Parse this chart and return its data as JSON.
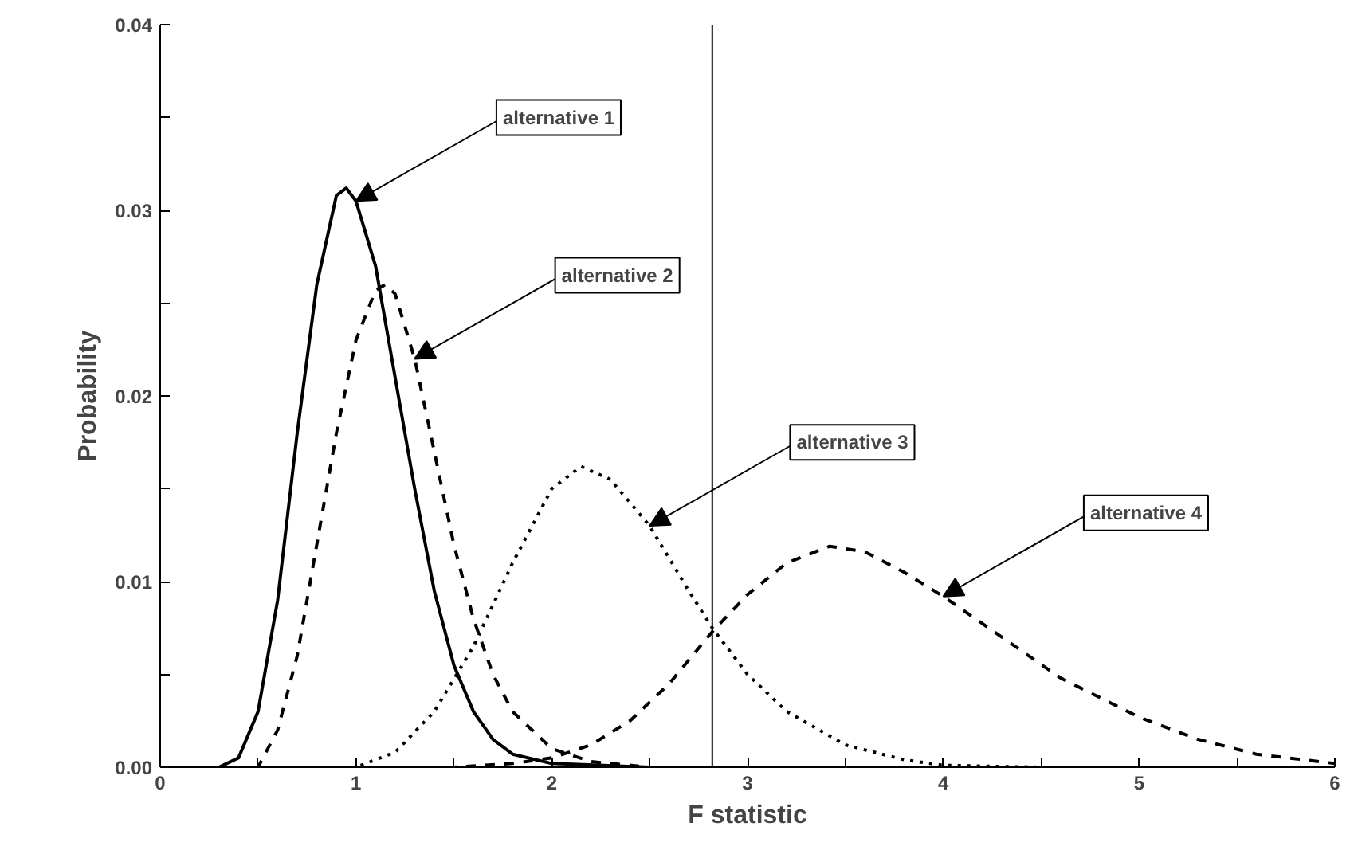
{
  "chart_data": {
    "type": "line",
    "xlabel": "F statistic",
    "ylabel": "Probability",
    "xlim": [
      0,
      6
    ],
    "ylim": [
      0,
      0.04
    ],
    "xticks": [
      0,
      {
        "value": 0.5,
        "label": null
      },
      1,
      {
        "value": 1.5,
        "label": null
      },
      2,
      {
        "value": 2.5,
        "label": null
      },
      3,
      {
        "value": 3.5,
        "label": null
      },
      4,
      {
        "value": 4.5,
        "label": null
      },
      5,
      {
        "value": 5.5,
        "label": null
      },
      6
    ],
    "yticks": [
      {
        "value": 0,
        "label": "0.00"
      },
      {
        "value": 0.005,
        "label": null
      },
      {
        "value": 0.01,
        "label": "0.01"
      },
      {
        "value": 0.015,
        "label": null
      },
      {
        "value": 0.02,
        "label": "0.02"
      },
      {
        "value": 0.025,
        "label": null
      },
      {
        "value": 0.03,
        "label": "0.03"
      },
      {
        "value": 0.035,
        "label": null
      },
      {
        "value": 0.04,
        "label": "0.04"
      }
    ],
    "grid": false,
    "marker": "none",
    "series": [
      {
        "color": "#000000",
        "line_style": "solid",
        "x": [
          0,
          0.3,
          0.4,
          0.5,
          0.6,
          0.7,
          0.8,
          0.9,
          0.95,
          1.0,
          1.1,
          1.2,
          1.3,
          1.4,
          1.5,
          1.6,
          1.7,
          1.8,
          2.0,
          2.5,
          6
        ],
        "values": [
          0,
          0,
          0.0005,
          0.003,
          0.009,
          0.018,
          0.026,
          0.0308,
          0.0312,
          0.0305,
          0.027,
          0.021,
          0.015,
          0.0095,
          0.0055,
          0.003,
          0.0015,
          0.0007,
          0.0002,
          0,
          0
        ]
      },
      {
        "color": "#000000",
        "line_style": "dashed",
        "x": [
          0,
          0.5,
          0.6,
          0.7,
          0.8,
          0.9,
          1.0,
          1.1,
          1.15,
          1.2,
          1.3,
          1.4,
          1.5,
          1.6,
          1.7,
          1.8,
          2.0,
          2.2,
          2.5,
          6
        ],
        "values": [
          0,
          0,
          0.002,
          0.006,
          0.012,
          0.018,
          0.023,
          0.0257,
          0.026,
          0.0255,
          0.022,
          0.017,
          0.012,
          0.008,
          0.005,
          0.003,
          0.001,
          0.0003,
          0,
          0
        ]
      },
      {
        "color": "#000000",
        "line_style": "dotted",
        "x": [
          0,
          1.0,
          1.2,
          1.4,
          1.6,
          1.8,
          2.0,
          2.15,
          2.3,
          2.5,
          2.7,
          2.82,
          3.0,
          3.2,
          3.5,
          3.8,
          4.0,
          4.5,
          6
        ],
        "values": [
          0,
          0,
          0.0008,
          0.003,
          0.0065,
          0.011,
          0.015,
          0.0162,
          0.0155,
          0.013,
          0.0095,
          0.0075,
          0.005,
          0.003,
          0.0012,
          0.0004,
          0.0001,
          0,
          0
        ]
      },
      {
        "color": "#000000",
        "line_style": "dashed",
        "x": [
          0,
          1.5,
          1.8,
          2.0,
          2.2,
          2.4,
          2.6,
          2.82,
          3.0,
          3.2,
          3.42,
          3.6,
          3.8,
          4.0,
          4.3,
          4.6,
          5.0,
          5.3,
          5.6,
          6.0
        ],
        "values": [
          0,
          0,
          0.0002,
          0.0005,
          0.0012,
          0.0025,
          0.0045,
          0.0073,
          0.0093,
          0.011,
          0.0119,
          0.0116,
          0.0105,
          0.0092,
          0.007,
          0.0048,
          0.0027,
          0.0015,
          0.0007,
          0.0002
        ]
      }
    ],
    "ref_lines": [
      {
        "axis": "x",
        "value": 2.82,
        "color": "#000000",
        "line_style": "solid"
      }
    ],
    "annotations": [
      {
        "text": "alternative 1",
        "x": 1.0,
        "y": 0.0305
      },
      {
        "text": "alternative 2",
        "x": 1.3,
        "y": 0.022
      },
      {
        "text": "alternative 3",
        "x": 2.5,
        "y": 0.013
      },
      {
        "text": "alternative 4",
        "x": 4.0,
        "y": 0.0092
      }
    ]
  }
}
